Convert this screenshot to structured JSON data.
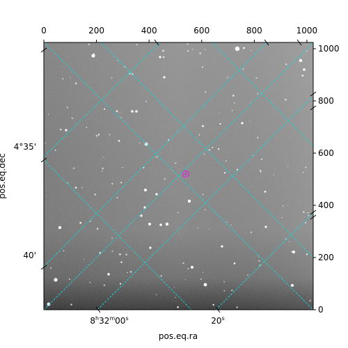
{
  "image": {
    "description": "Grayscale astronomical star field with WCS grid overlay",
    "colors": {
      "background_sky": "#7a7a7a",
      "sky_light": "#9a9a9a",
      "sky_dark": "#1a1a1a",
      "grid": "#19d3d3",
      "marker": "#cc33cc",
      "star": "#ffffff"
    },
    "grid_style": "dashed",
    "target_marker": "circle"
  },
  "axes": {
    "xlabel": "pos.eq.ra",
    "ylabel": "pos.eq.dec",
    "top_ticks": [
      "0",
      "200",
      "400",
      "600",
      "800",
      "1000"
    ],
    "top_values": [
      0,
      200,
      400,
      600,
      800,
      1000
    ],
    "right_ticks": [
      "0",
      "200",
      "400",
      "600",
      "800",
      "1000"
    ],
    "right_values": [
      0,
      200,
      400,
      600,
      800,
      1000
    ],
    "pixel_range": [
      0,
      1024
    ],
    "ra_ticks": [
      {
        "h": "8",
        "m": "32",
        "s": "00"
      },
      {
        "h": "",
        "m": "",
        "s": "20"
      }
    ],
    "dec_ticks": [
      "4°35'",
      "40'"
    ]
  }
}
